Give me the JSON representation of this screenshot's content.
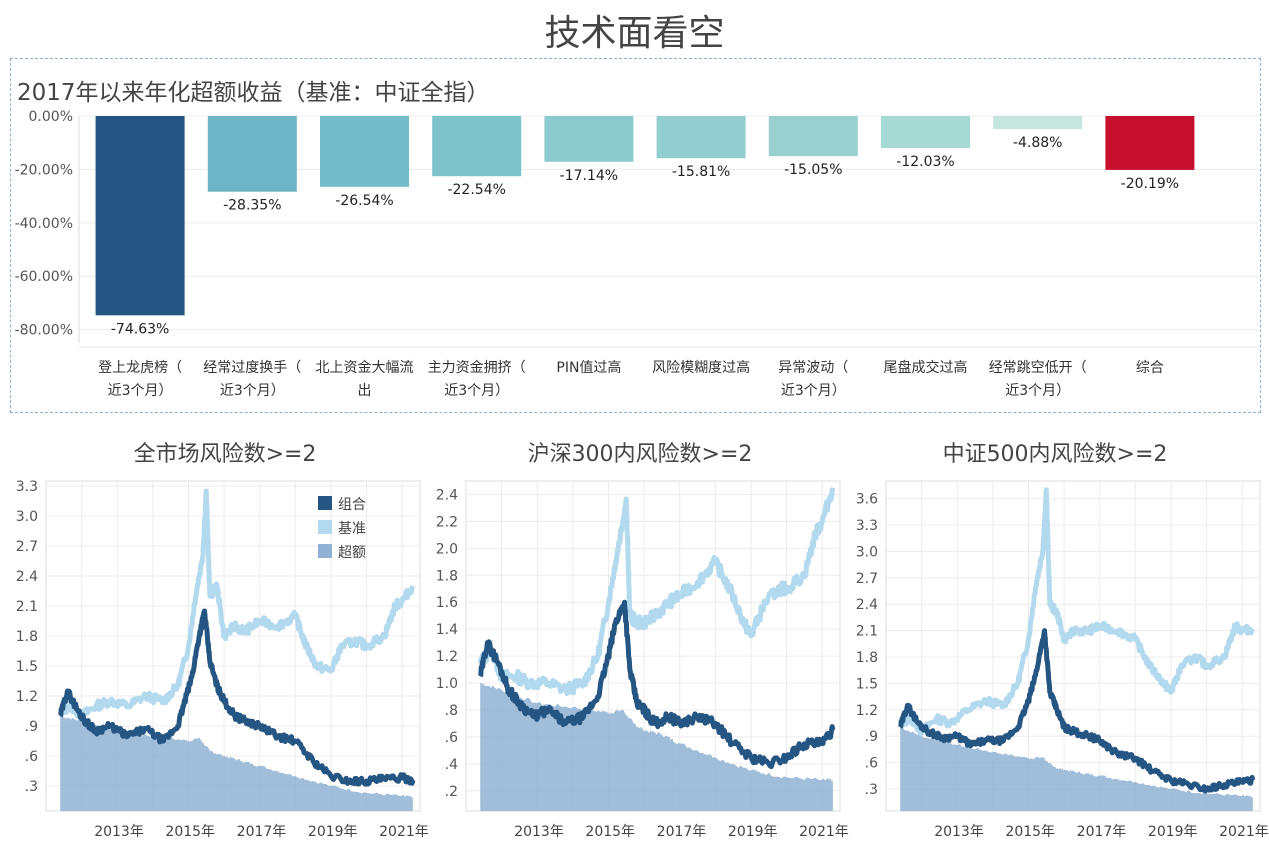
{
  "page_title": "技术面看空",
  "chart_data": [
    {
      "type": "bar",
      "title": "2017年以来年化超额收益（基准：中证全指）",
      "categories": [
        [
          "登上龙虎榜（",
          "近3个月）"
        ],
        [
          "经常过度换手（",
          "近3个月）"
        ],
        [
          "北上资金大幅流",
          "出"
        ],
        [
          "主力资金拥挤（",
          "近3个月）"
        ],
        [
          "PIN值过高"
        ],
        [
          "风险模糊度过高"
        ],
        [
          "异常波动（",
          "近3个月）"
        ],
        [
          "尾盘成交过高"
        ],
        [
          "经常跳空低开（",
          "近3个月）"
        ],
        [
          "综合"
        ]
      ],
      "values": [
        -74.63,
        -28.35,
        -26.54,
        -22.54,
        -17.14,
        -15.81,
        -15.05,
        -12.03,
        -4.88,
        -20.19
      ],
      "value_labels": [
        "-74.63%",
        "-28.35%",
        "-26.54%",
        "-22.54%",
        "-17.14%",
        "-15.81%",
        "-15.05%",
        "-12.03%",
        "-4.88%",
        "-20.19%"
      ],
      "y_ticks": [
        "0.00%",
        "-20.00%",
        "-40.00%",
        "-60.00%",
        "-80.00%"
      ],
      "ylim": [
        -85,
        0
      ],
      "colors": [
        "#245583",
        "#6cb4c6",
        "#74bcc9",
        "#7cc3cb",
        "#8ccbcd",
        "#92cecf",
        "#98d1d0",
        "#a6d8d4",
        "#c4e6de",
        "#c8102e"
      ]
    },
    {
      "type": "line",
      "title": "全市场风险数>=2",
      "x_ticks": [
        "2013年",
        "2015年",
        "2017年",
        "2019年",
        "2021年"
      ],
      "y_ticks": [
        "3.3",
        "3.0",
        "2.7",
        "2.4",
        "2.1",
        "1.8",
        "1.5",
        "1.2",
        ".9",
        ".6",
        ".3"
      ],
      "ylim": [
        0.05,
        3.35
      ],
      "xlim": [
        2011.0,
        2021.5
      ],
      "legend_position": "top-right",
      "series": [
        {
          "name": "组合",
          "color": "#245583",
          "x": [
            2011.4,
            2011.6,
            2011.9,
            2012.1,
            2012.4,
            2012.8,
            2013.3,
            2013.8,
            2014.3,
            2014.7,
            2014.9,
            2015.1,
            2015.3,
            2015.45,
            2015.6,
            2015.8,
            2016.0,
            2016.3,
            2016.6,
            2017.0,
            2017.5,
            2018.0,
            2018.5,
            2019.0,
            2019.5,
            2020.0,
            2020.5,
            2021.0,
            2021.3
          ],
          "y": [
            1.0,
            1.25,
            1.05,
            0.95,
            0.85,
            0.9,
            0.8,
            0.87,
            0.75,
            0.9,
            1.15,
            1.4,
            1.8,
            2.05,
            1.55,
            1.3,
            1.15,
            1.0,
            0.95,
            0.9,
            0.8,
            0.75,
            0.55,
            0.4,
            0.35,
            0.35,
            0.37,
            0.38,
            0.36
          ]
        },
        {
          "name": "基准",
          "color": "#b3d9ee",
          "x": [
            2011.4,
            2011.7,
            2012.0,
            2012.4,
            2012.8,
            2013.3,
            2013.8,
            2014.3,
            2014.7,
            2015.0,
            2015.2,
            2015.4,
            2015.5,
            2015.6,
            2015.8,
            2016.0,
            2016.3,
            2016.6,
            2017.0,
            2017.5,
            2018.0,
            2018.3,
            2018.6,
            2019.0,
            2019.3,
            2019.7,
            2020.0,
            2020.5,
            2020.8,
            2021.0,
            2021.3
          ],
          "y": [
            1.05,
            1.1,
            1.0,
            1.1,
            1.15,
            1.1,
            1.2,
            1.15,
            1.3,
            1.7,
            2.2,
            2.6,
            3.25,
            2.2,
            2.3,
            1.8,
            1.9,
            1.85,
            1.95,
            1.9,
            2.0,
            1.7,
            1.5,
            1.45,
            1.7,
            1.75,
            1.7,
            1.8,
            2.1,
            2.15,
            2.3
          ]
        },
        {
          "name": "超额",
          "color": "#8fb1d3",
          "x": [
            2011.4,
            2012.0,
            2013.0,
            2014.0,
            2015.0,
            2015.3,
            2015.6,
            2016.0,
            2016.5,
            2017.0,
            2018.0,
            2019.0,
            2020.0,
            2021.0,
            2021.3
          ],
          "y": [
            1.0,
            0.95,
            0.85,
            0.8,
            0.75,
            0.78,
            0.65,
            0.6,
            0.55,
            0.5,
            0.4,
            0.3,
            0.23,
            0.2,
            0.19
          ]
        }
      ]
    },
    {
      "type": "line",
      "title": "沪深300内风险数>=2",
      "x_ticks": [
        "2013年",
        "2015年",
        "2017年",
        "2019年",
        "2021年"
      ],
      "y_ticks": [
        "2.4",
        "2.2",
        "2.0",
        "1.8",
        "1.6",
        "1.4",
        "1.2",
        "1.0",
        ".8",
        ".6",
        ".4",
        ".2"
      ],
      "ylim": [
        0.05,
        2.5
      ],
      "xlim": [
        2011.0,
        2021.5
      ],
      "series": [
        {
          "name": "组合",
          "color": "#245583",
          "x": [
            2011.4,
            2011.6,
            2011.9,
            2012.2,
            2012.5,
            2012.9,
            2013.3,
            2013.8,
            2014.3,
            2014.7,
            2015.0,
            2015.2,
            2015.45,
            2015.6,
            2015.8,
            2016.0,
            2016.3,
            2016.7,
            2017.0,
            2017.5,
            2018.0,
            2018.5,
            2019.0,
            2019.5,
            2020.0,
            2020.5,
            2021.0,
            2021.3
          ],
          "y": [
            1.05,
            1.3,
            1.15,
            0.95,
            0.85,
            0.75,
            0.8,
            0.7,
            0.75,
            0.9,
            1.2,
            1.45,
            1.6,
            1.1,
            0.85,
            0.8,
            0.7,
            0.75,
            0.7,
            0.75,
            0.7,
            0.55,
            0.45,
            0.4,
            0.45,
            0.55,
            0.55,
            0.65
          ]
        },
        {
          "name": "基准",
          "color": "#b3d9ee",
          "x": [
            2011.4,
            2011.7,
            2012.0,
            2012.4,
            2012.8,
            2013.3,
            2013.8,
            2014.3,
            2014.7,
            2015.0,
            2015.2,
            2015.4,
            2015.5,
            2015.6,
            2015.8,
            2016.0,
            2016.3,
            2016.7,
            2017.0,
            2017.5,
            2018.0,
            2018.4,
            2018.8,
            2019.0,
            2019.4,
            2019.8,
            2020.0,
            2020.5,
            2020.8,
            2021.0,
            2021.3
          ],
          "y": [
            1.15,
            1.25,
            1.05,
            1.05,
            1.0,
            1.0,
            0.95,
            1.0,
            1.2,
            1.6,
            1.9,
            2.2,
            2.35,
            1.5,
            1.45,
            1.45,
            1.5,
            1.6,
            1.65,
            1.75,
            1.9,
            1.7,
            1.45,
            1.35,
            1.6,
            1.7,
            1.7,
            1.8,
            2.1,
            2.2,
            2.45
          ]
        },
        {
          "name": "超额",
          "color": "#8fb1d3",
          "x": [
            2011.4,
            2012.0,
            2013.0,
            2014.0,
            2015.0,
            2015.4,
            2015.7,
            2016.0,
            2016.5,
            2017.0,
            2018.0,
            2019.0,
            2020.0,
            2021.0,
            2021.3
          ],
          "y": [
            1.0,
            0.95,
            0.85,
            0.82,
            0.78,
            0.8,
            0.7,
            0.65,
            0.62,
            0.55,
            0.45,
            0.35,
            0.3,
            0.28,
            0.28
          ]
        }
      ]
    },
    {
      "type": "line",
      "title": "中证500内风险数>=2",
      "x_ticks": [
        "2013年",
        "2015年",
        "2017年",
        "2019年",
        "2021年"
      ],
      "y_ticks": [
        "3.6",
        "3.3",
        "3.0",
        "2.7",
        "2.4",
        "2.1",
        "1.8",
        "1.5",
        "1.2",
        ".9",
        ".6",
        ".3"
      ],
      "ylim": [
        0.05,
        3.8
      ],
      "xlim": [
        2011.0,
        2021.5
      ],
      "series": [
        {
          "name": "组合",
          "color": "#245583",
          "x": [
            2011.4,
            2011.6,
            2011.9,
            2012.2,
            2012.6,
            2013.0,
            2013.4,
            2013.8,
            2014.3,
            2014.7,
            2015.0,
            2015.2,
            2015.45,
            2015.6,
            2015.8,
            2016.0,
            2016.3,
            2016.7,
            2017.0,
            2017.5,
            2018.0,
            2018.5,
            2019.0,
            2019.5,
            2020.0,
            2020.5,
            2021.0,
            2021.3
          ],
          "y": [
            1.0,
            1.25,
            1.05,
            0.95,
            0.88,
            0.9,
            0.8,
            0.85,
            0.85,
            1.0,
            1.3,
            1.6,
            2.1,
            1.4,
            1.2,
            1.0,
            0.95,
            0.9,
            0.85,
            0.7,
            0.65,
            0.5,
            0.4,
            0.35,
            0.3,
            0.35,
            0.38,
            0.4
          ]
        },
        {
          "name": "基准",
          "color": "#b3d9ee",
          "x": [
            2011.4,
            2011.7,
            2012.0,
            2012.4,
            2012.8,
            2013.3,
            2013.8,
            2014.3,
            2014.7,
            2015.0,
            2015.2,
            2015.4,
            2015.5,
            2015.6,
            2015.8,
            2016.0,
            2016.3,
            2016.7,
            2017.0,
            2017.5,
            2018.0,
            2018.4,
            2018.8,
            2019.0,
            2019.3,
            2019.7,
            2020.0,
            2020.5,
            2020.8,
            2021.0,
            2021.3
          ],
          "y": [
            1.05,
            1.1,
            0.95,
            1.1,
            1.05,
            1.2,
            1.3,
            1.25,
            1.5,
            2.0,
            2.6,
            3.0,
            3.7,
            2.4,
            2.3,
            2.0,
            2.1,
            2.1,
            2.15,
            2.1,
            2.0,
            1.7,
            1.5,
            1.4,
            1.7,
            1.8,
            1.7,
            1.8,
            2.15,
            2.1,
            2.12
          ]
        },
        {
          "name": "超额",
          "color": "#8fb1d3",
          "x": [
            2011.4,
            2012.0,
            2013.0,
            2014.0,
            2015.0,
            2015.4,
            2015.7,
            2016.0,
            2016.5,
            2017.0,
            2018.0,
            2019.0,
            2020.0,
            2021.0,
            2021.3
          ],
          "y": [
            1.0,
            0.9,
            0.8,
            0.72,
            0.65,
            0.66,
            0.55,
            0.52,
            0.48,
            0.45,
            0.38,
            0.3,
            0.25,
            0.22,
            0.21
          ]
        }
      ]
    }
  ]
}
